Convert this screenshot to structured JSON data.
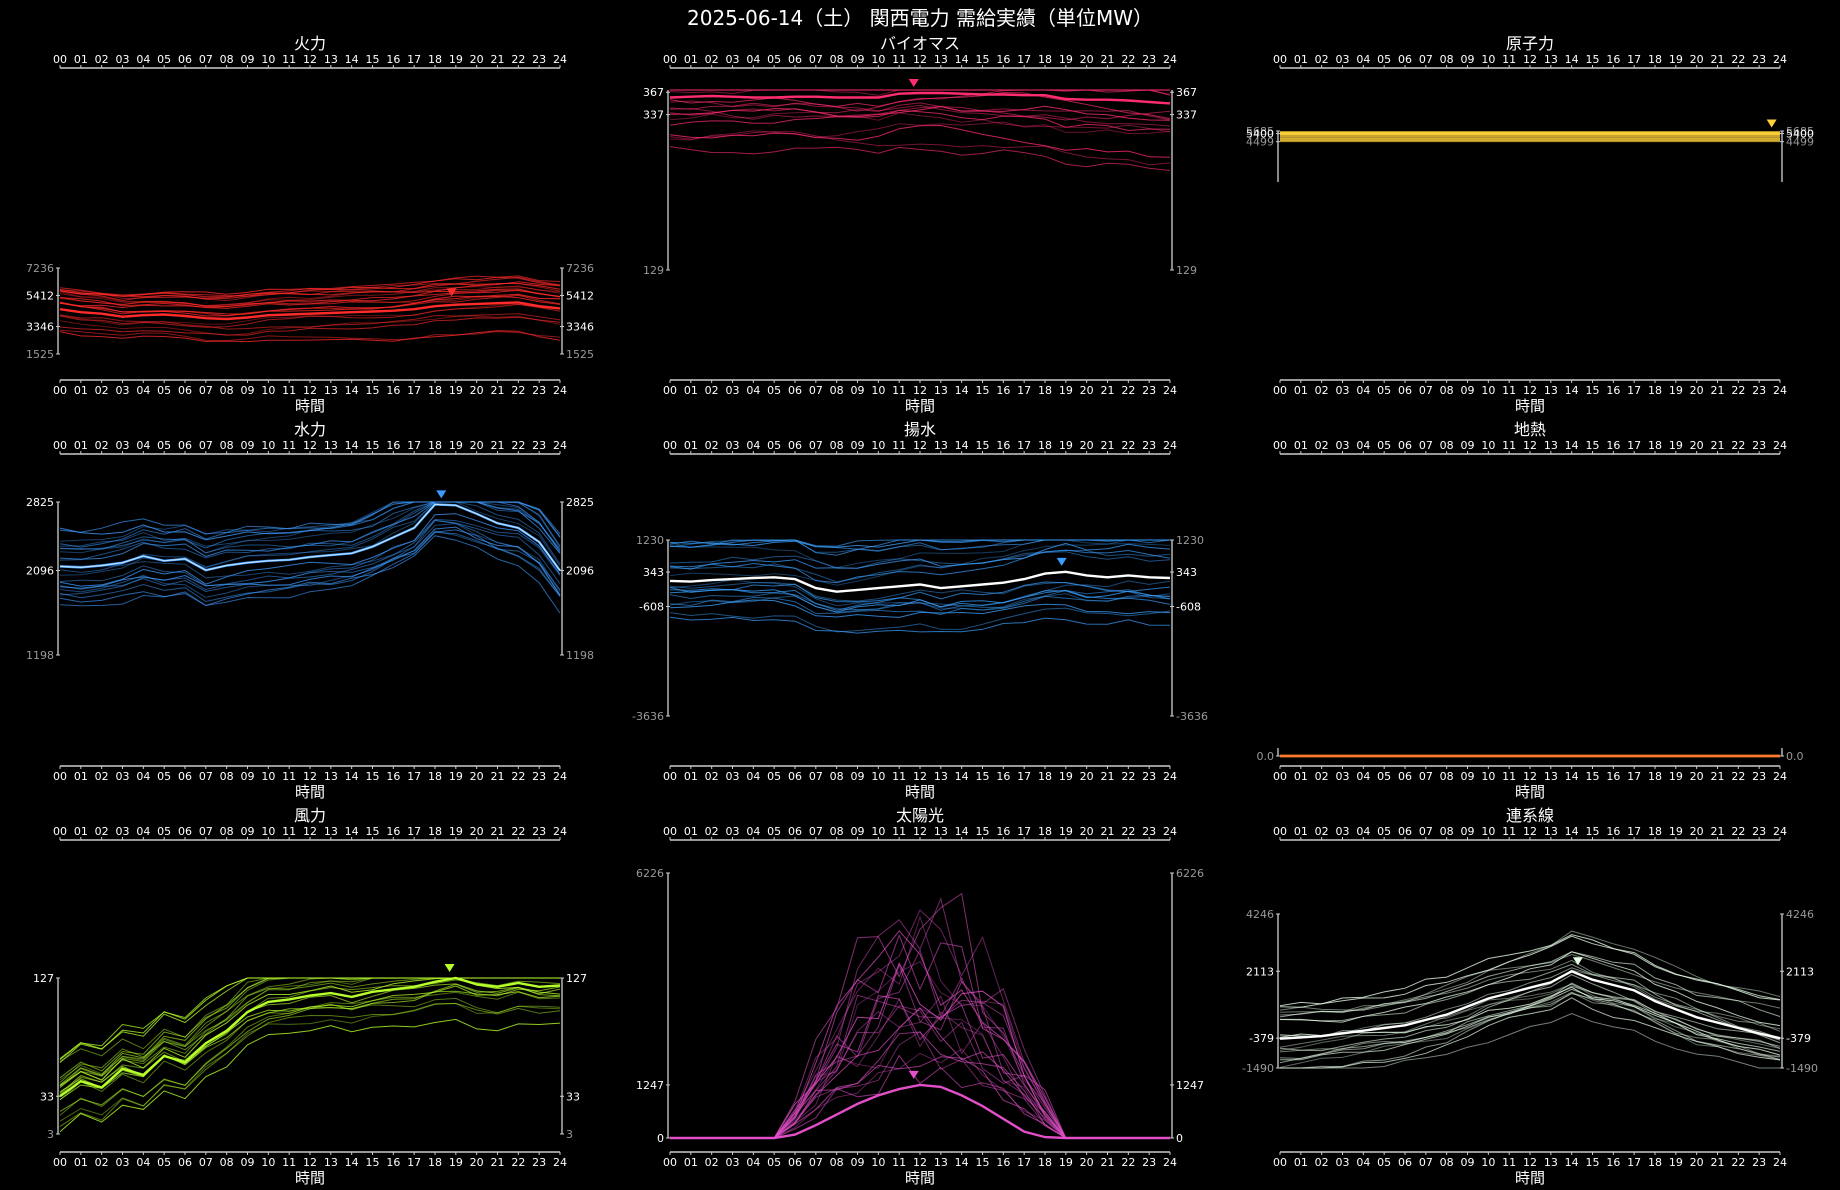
{
  "page_title": "2025-06-14（土） 関西電力 需給実績（単位MW）",
  "x_ticks": [
    "00",
    "01",
    "02",
    "03",
    "04",
    "05",
    "06",
    "07",
    "08",
    "09",
    "10",
    "11",
    "12",
    "13",
    "14",
    "15",
    "16",
    "17",
    "18",
    "19",
    "20",
    "21",
    "22",
    "23",
    "24"
  ],
  "x_axis_label": "時間",
  "chart_data": [
    {
      "type": "line",
      "title": "火力",
      "color": "#ff2a2a",
      "ylim": [
        1525,
        7236
      ],
      "y_ticks": [
        7236,
        5412,
        3346,
        1525
      ],
      "range_labels": [
        "5412",
        "3346"
      ],
      "extreme_labels": [
        "7236",
        "1525"
      ],
      "peak_hour": 18.8,
      "highlight": [
        4500,
        4300,
        4200,
        4000,
        4100,
        4150,
        4050,
        3900,
        3850,
        3950,
        4100,
        4150,
        4200,
        4250,
        4300,
        4350,
        4400,
        4500,
        4700,
        4800,
        4850,
        4900,
        4950,
        4700,
        4550
      ]
    },
    {
      "type": "line",
      "title": "バイオマス",
      "color": "#ff2d6f",
      "ylim": [
        129,
        370
      ],
      "y_ticks": [
        367,
        337,
        129
      ],
      "range_labels": [
        "367",
        "337"
      ],
      "extreme_labels": [
        "367",
        "129"
      ],
      "peak_hour": 11.7,
      "highlight": [
        360,
        361,
        362,
        361,
        360,
        360,
        361,
        361,
        360,
        360,
        360,
        365,
        366,
        366,
        365,
        364,
        364,
        363,
        363,
        358,
        357,
        357,
        356,
        354,
        352
      ]
    },
    {
      "type": "line",
      "title": "原子力",
      "color": "#ffd23a",
      "ylim": [
        0,
        5685
      ],
      "y_ticks": [
        5685,
        5400,
        4499
      ],
      "range_labels": [
        "5400",
        "5400"
      ],
      "extreme_labels": [
        "5685",
        "4499"
      ],
      "peak_hour": 23.6,
      "highlight": [
        5400,
        5400,
        5400,
        5400,
        5400,
        5400,
        5400,
        5400,
        5400,
        5400,
        5400,
        5400,
        5400,
        5400,
        5400,
        5400,
        5400,
        5400,
        5400,
        5400,
        5400,
        5400,
        5400,
        5400,
        5400
      ]
    },
    {
      "type": "line",
      "title": "水力",
      "color": "#3d9bff",
      "ylim": [
        1198,
        2825
      ],
      "y_ticks": [
        2825,
        2096,
        1198
      ],
      "range_labels": [
        "2825",
        "2096"
      ],
      "extreme_labels": [
        "2825",
        "1198"
      ],
      "peak_hour": 18.3,
      "highlight": [
        2140,
        2130,
        2150,
        2180,
        2250,
        2200,
        2220,
        2100,
        2150,
        2180,
        2200,
        2210,
        2240,
        2260,
        2280,
        2350,
        2450,
        2550,
        2800,
        2790,
        2700,
        2600,
        2550,
        2400,
        2096
      ]
    },
    {
      "type": "line",
      "title": "揚水",
      "color": "#3aa0ff",
      "ylim": [
        -3636,
        1230
      ],
      "y_ticks": [
        1230,
        343,
        -608,
        -3636
      ],
      "range_labels": [
        "343",
        "-608"
      ],
      "extreme_labels": [
        "1230",
        "-3636"
      ],
      "peak_hour": 18.8,
      "highlight": [
        100,
        80,
        120,
        150,
        180,
        200,
        150,
        -100,
        -200,
        -150,
        -100,
        -50,
        0,
        -100,
        -50,
        0,
        50,
        150,
        300,
        350,
        250,
        200,
        250,
        200,
        180
      ]
    },
    {
      "type": "line",
      "title": "地熱",
      "color": "#ff7a2a",
      "ylim": [
        0,
        1
      ],
      "y_ticks": [
        0
      ],
      "range_labels": [
        "0.0",
        "0.0"
      ],
      "extreme_labels": [],
      "peak_hour": null,
      "highlight": [
        0,
        0,
        0,
        0,
        0,
        0,
        0,
        0,
        0,
        0,
        0,
        0,
        0,
        0,
        0,
        0,
        0,
        0,
        0,
        0,
        0,
        0,
        0,
        0,
        0
      ]
    },
    {
      "type": "line",
      "title": "風力",
      "color": "#b6ff2a",
      "ylim": [
        3,
        127
      ],
      "y_ticks": [
        127,
        33,
        3
      ],
      "range_labels": [
        "127",
        "33"
      ],
      "extreme_labels": [
        "127",
        "3"
      ],
      "peak_hour": 18.7,
      "highlight": [
        33,
        45,
        40,
        55,
        50,
        65,
        60,
        75,
        85,
        100,
        108,
        110,
        113,
        115,
        112,
        116,
        118,
        120,
        124,
        127,
        122,
        120,
        123,
        120,
        121
      ]
    },
    {
      "type": "line",
      "title": "太陽光",
      "color": "#e24fc8",
      "ylim": [
        0,
        6226
      ],
      "y_ticks": [
        6226,
        1247,
        0
      ],
      "range_labels": [
        "1247",
        "0"
      ],
      "extreme_labels": [
        "6226",
        "0"
      ],
      "peak_hour": 11.7,
      "highlight": [
        0,
        0,
        0,
        0,
        0,
        0,
        80,
        300,
        550,
        800,
        1000,
        1150,
        1247,
        1200,
        1000,
        750,
        450,
        150,
        20,
        0,
        0,
        0,
        0,
        0,
        0
      ]
    },
    {
      "type": "line",
      "title": "連系線",
      "color": "#e8ffe8",
      "ylim": [
        -1490,
        4246
      ],
      "y_ticks": [
        4246,
        2113,
        -379,
        -1490
      ],
      "range_labels": [
        "2113",
        "-379"
      ],
      "extreme_labels": [
        "4246",
        "-1490"
      ],
      "peak_hour": 14.3,
      "highlight": [
        -400,
        -350,
        -300,
        -200,
        -100,
        0,
        100,
        300,
        500,
        800,
        1100,
        1300,
        1500,
        1700,
        2113,
        1800,
        1600,
        1400,
        1000,
        700,
        400,
        200,
        0,
        -200,
        -379
      ]
    }
  ]
}
